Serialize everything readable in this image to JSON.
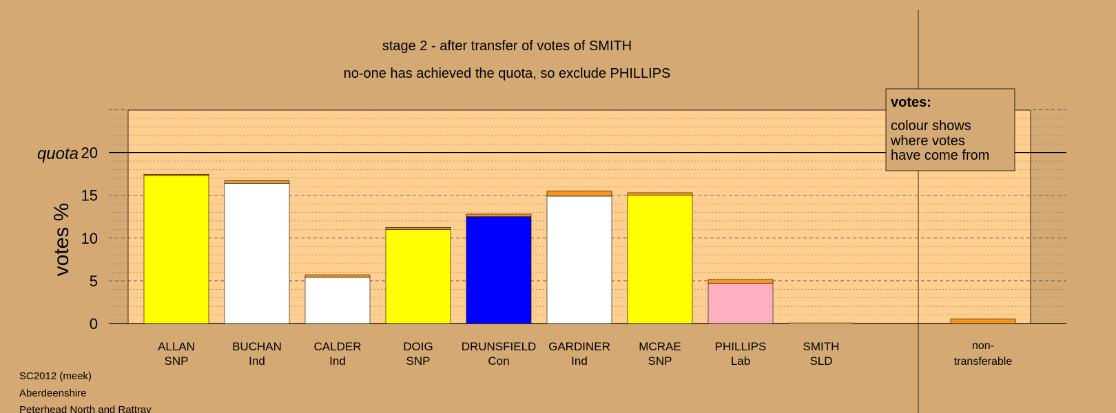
{
  "chart_data": {
    "type": "bar",
    "title": "stage 2 - after transfer of votes of SMITH",
    "subtitle": "no-one has achieved the quota, so exclude PHILLIPS",
    "ylabel": "votes %",
    "quota_label": "quota",
    "quota": 20,
    "ylim": [
      0,
      25
    ],
    "yticks": [
      0,
      5,
      10,
      15,
      20
    ],
    "grid": true,
    "legend": {
      "title": "votes:",
      "lines": [
        "colour shows",
        "where votes",
        "have come from"
      ],
      "placement": "top-right"
    },
    "transfer_color": "#f7941d",
    "categories": [
      {
        "name": "ALLAN",
        "party": "SNP",
        "base": 17.4,
        "transfer": 0.05,
        "color": "#ffff00"
      },
      {
        "name": "BUCHAN",
        "party": "Ind",
        "base": 16.4,
        "transfer": 0.3,
        "color": "#ffffff"
      },
      {
        "name": "CALDER",
        "party": "Ind",
        "base": 5.4,
        "transfer": 0.3,
        "color": "#ffffff"
      },
      {
        "name": "DOIG",
        "party": "SNP",
        "base": 11.0,
        "transfer": 0.25,
        "color": "#ffff00"
      },
      {
        "name": "DRUNSFIELD",
        "party": "Con",
        "base": 12.5,
        "transfer": 0.3,
        "color": "#0000ff"
      },
      {
        "name": "GARDINER",
        "party": "Ind",
        "base": 14.9,
        "transfer": 0.6,
        "color": "#ffffff"
      },
      {
        "name": "MCRAE",
        "party": "SNP",
        "base": 15.0,
        "transfer": 0.3,
        "color": "#ffff00"
      },
      {
        "name": "PHILLIPS",
        "party": "Lab",
        "base": 4.7,
        "transfer": 0.45,
        "color": "#ffb0c0"
      },
      {
        "name": "SMITH",
        "party": "SLD",
        "base": 0,
        "transfer": 0,
        "color": "#ffff66"
      }
    ],
    "nontransferable": {
      "label_line1": "non-",
      "label_line2": "transferable",
      "value": 0.55
    }
  },
  "footer": {
    "line1": "SC2012 (meek)",
    "line2": "Aberdeenshire",
    "line3": "Peterhead North and Rattray"
  }
}
